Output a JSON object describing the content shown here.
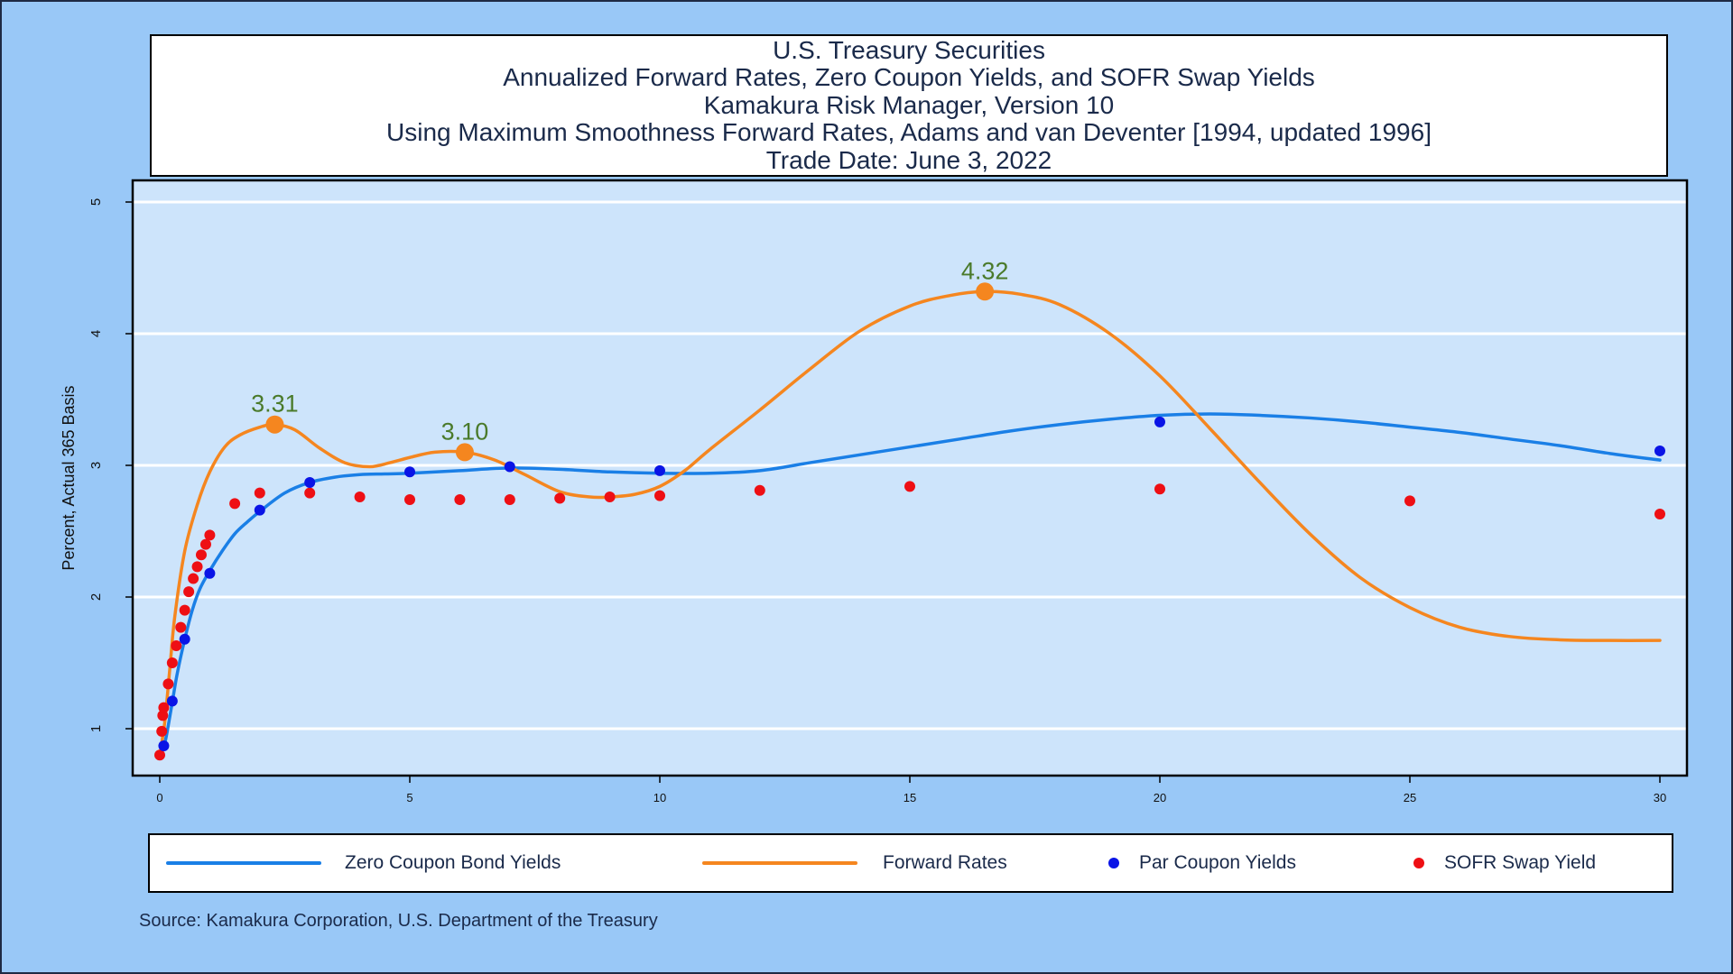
{
  "title_lines": [
    "U.S. Treasury Securities",
    "Annualized Forward Rates, Zero Coupon Yields, and SOFR Swap Yields",
    "Kamakura Risk Manager, Version 10",
    "Using Maximum Smoothness Forward Rates, Adams and van Deventer [1994, updated 1996]",
    "Trade Date: June 3, 2022"
  ],
  "source": "Source: Kamakura Corporation, U.S. Department of the Treasury",
  "legend": {
    "zero": "Zero Coupon Bond Yields",
    "forward": "Forward Rates",
    "par": "Par Coupon Yields",
    "sofr": "SOFR Swap Yield"
  },
  "colors": {
    "zero": "#1a7fe6",
    "forward": "#f5861f",
    "par": "#0a14e6",
    "sofr": "#ee0f14",
    "plot_bg": "#cde4fb",
    "annotation": "#4a7a2a"
  },
  "chart_data": {
    "type": "line",
    "ylabel": "Percent, Actual 365 Basis",
    "xlabel": "",
    "xlim": [
      -0.5,
      30.5
    ],
    "ylim": [
      0.65,
      5.0
    ],
    "xticks": [
      0,
      5,
      10,
      15,
      20,
      25,
      30
    ],
    "yticks": [
      1,
      2,
      3,
      4,
      5
    ],
    "grid": true,
    "legend_position": "bottom",
    "annotations": [
      {
        "x": 2.3,
        "y": 3.31,
        "label": "3.31"
      },
      {
        "x": 6.1,
        "y": 3.1,
        "label": "3.10"
      },
      {
        "x": 16.5,
        "y": 4.32,
        "label": "4.32"
      }
    ],
    "series": [
      {
        "name": "Zero Coupon Bond Yields",
        "kind": "line",
        "x": [
          0.08,
          0.15,
          0.25,
          0.35,
          0.5,
          0.65,
          0.8,
          1,
          1.25,
          1.5,
          1.75,
          2,
          2.5,
          3,
          3.5,
          4,
          4.5,
          5,
          6,
          7,
          8,
          9,
          10,
          11,
          12,
          13,
          14,
          15,
          16,
          17,
          18,
          19,
          20,
          21,
          22,
          23,
          24,
          25,
          26,
          27,
          28,
          29,
          30
        ],
        "y": [
          0.85,
          0.98,
          1.2,
          1.42,
          1.68,
          1.9,
          2.06,
          2.2,
          2.35,
          2.48,
          2.57,
          2.65,
          2.79,
          2.87,
          2.91,
          2.93,
          2.935,
          2.94,
          2.96,
          2.98,
          2.97,
          2.95,
          2.94,
          2.94,
          2.96,
          3.02,
          3.08,
          3.14,
          3.2,
          3.26,
          3.31,
          3.35,
          3.38,
          3.39,
          3.38,
          3.36,
          3.33,
          3.29,
          3.25,
          3.2,
          3.15,
          3.09,
          3.04
        ]
      },
      {
        "name": "Forward Rates",
        "kind": "line",
        "x": [
          0.0,
          0.1,
          0.2,
          0.3,
          0.5,
          0.75,
          1.0,
          1.3,
          1.6,
          2.0,
          2.3,
          2.7,
          3.2,
          3.7,
          4.2,
          4.6,
          5.0,
          5.5,
          6.1,
          6.7,
          7.3,
          8.0,
          8.6,
          9.0,
          9.5,
          10.0,
          10.5,
          11.0,
          12.0,
          13.0,
          14.0,
          15.0,
          15.8,
          16.5,
          17.2,
          18.0,
          19.0,
          20.0,
          21.0,
          22.0,
          23.0,
          24.0,
          25.0,
          26.0,
          27.0,
          28.0,
          29.0,
          30.0
        ],
        "y": [
          0.8,
          1.05,
          1.45,
          1.85,
          2.35,
          2.7,
          2.95,
          3.14,
          3.23,
          3.29,
          3.31,
          3.27,
          3.13,
          3.02,
          2.99,
          3.02,
          3.06,
          3.1,
          3.1,
          3.04,
          2.93,
          2.8,
          2.76,
          2.76,
          2.78,
          2.84,
          2.96,
          3.12,
          3.42,
          3.73,
          4.02,
          4.21,
          4.29,
          4.32,
          4.3,
          4.22,
          4.0,
          3.68,
          3.28,
          2.87,
          2.48,
          2.15,
          1.92,
          1.77,
          1.7,
          1.675,
          1.67,
          1.67
        ]
      },
      {
        "name": "Par Coupon Yields",
        "kind": "scatter",
        "x": [
          0.08,
          0.25,
          0.5,
          1,
          2,
          3,
          5,
          7,
          10,
          20,
          30
        ],
        "y": [
          0.87,
          1.21,
          1.68,
          2.18,
          2.66,
          2.87,
          2.95,
          2.99,
          2.96,
          3.33,
          3.11
        ]
      },
      {
        "name": "SOFR Swap Yield",
        "kind": "scatter",
        "x": [
          0.0,
          0.04,
          0.06,
          0.08,
          0.17,
          0.25,
          0.33,
          0.42,
          0.5,
          0.58,
          0.67,
          0.75,
          0.83,
          0.92,
          1.0,
          1.5,
          2,
          3,
          4,
          5,
          6,
          7,
          8,
          9,
          10,
          12,
          15,
          20,
          25,
          30
        ],
        "y": [
          0.8,
          0.98,
          1.1,
          1.16,
          1.34,
          1.5,
          1.63,
          1.77,
          1.9,
          2.04,
          2.14,
          2.23,
          2.32,
          2.4,
          2.47,
          2.71,
          2.79,
          2.79,
          2.76,
          2.74,
          2.74,
          2.74,
          2.75,
          2.76,
          2.77,
          2.81,
          2.84,
          2.82,
          2.73,
          2.63
        ]
      }
    ]
  }
}
